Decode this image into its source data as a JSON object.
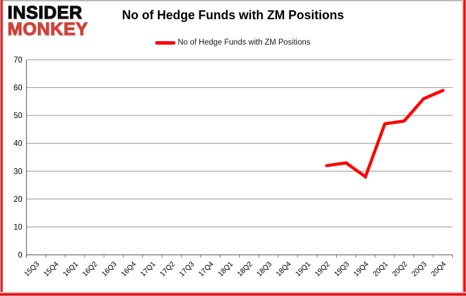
{
  "logo": {
    "line1": "INSIDER",
    "line2": "MONKEY",
    "line2_color": "#cf4338"
  },
  "header": {
    "title": "No of Hedge Funds with ZM Positions"
  },
  "legend": {
    "label": "No of Hedge Funds with ZM Positions",
    "swatch_color": "#fe0000"
  },
  "chart_data": {
    "type": "line",
    "title": "No of Hedge Funds with ZM Positions",
    "categories": [
      "15Q3",
      "15Q4",
      "16Q1",
      "16Q2",
      "16Q3",
      "16Q4",
      "17Q1",
      "17Q2",
      "17Q3",
      "17Q4",
      "18Q1",
      "18Q2",
      "18Q3",
      "18Q4",
      "19Q1",
      "19Q2",
      "19Q3",
      "19Q4",
      "20Q1",
      "20Q2",
      "20Q3",
      "20Q4"
    ],
    "series": [
      {
        "name": "No of Hedge Funds with ZM Positions",
        "color": "#fe0000",
        "values": [
          null,
          null,
          null,
          null,
          null,
          null,
          null,
          null,
          null,
          null,
          null,
          null,
          null,
          null,
          null,
          32,
          33,
          28,
          47,
          48,
          56,
          59
        ]
      }
    ],
    "xlabel": "",
    "ylabel": "",
    "ylim": [
      0,
      70
    ],
    "ytick_step": 10,
    "grid": true,
    "legend_position": "top-center"
  },
  "colors": {
    "background": "#ffffff",
    "gridline": "#949494",
    "axis": "#6e6e6e",
    "tick_text": "#000000",
    "frame_red": "#fe0000"
  }
}
